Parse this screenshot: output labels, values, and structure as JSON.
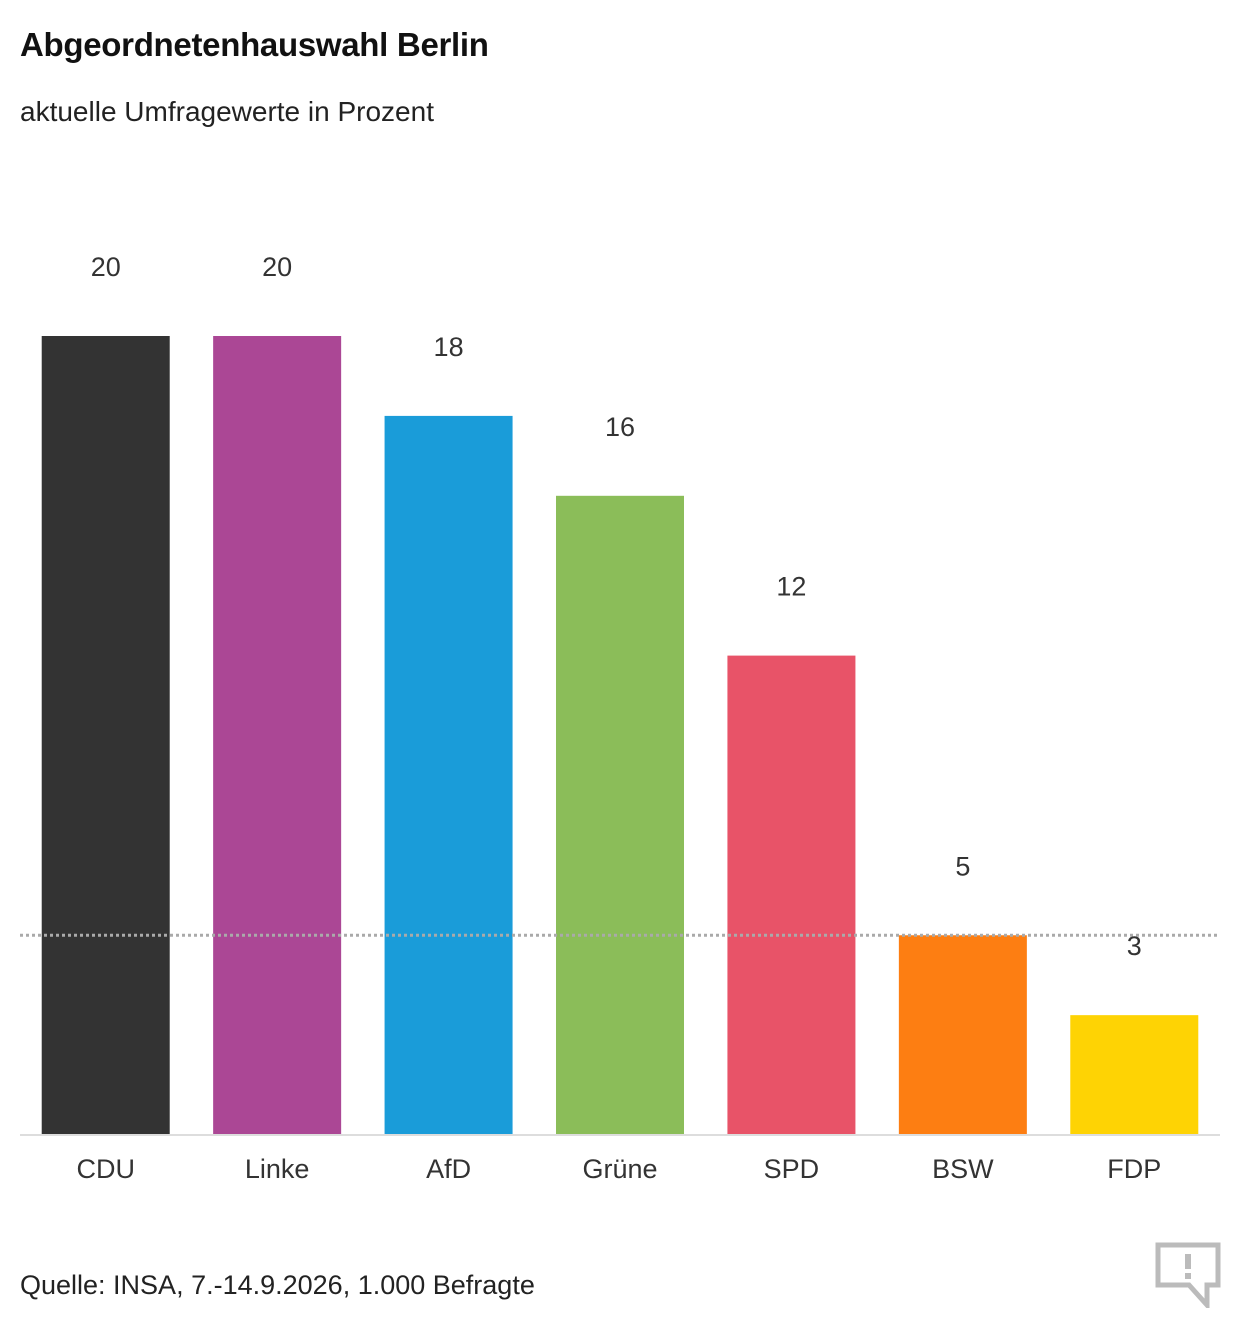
{
  "title": "Abgeordnetenhauswahl Berlin",
  "subtitle": "aktuelle Umfragewerte in Prozent",
  "source": "Quelle: INSA, 7.-14.9.2026, 1.000 Befragte",
  "chart_data": {
    "type": "bar",
    "categories": [
      "CDU",
      "Linke",
      "AfD",
      "Grüne",
      "SPD",
      "BSW",
      "FDP"
    ],
    "values": [
      20,
      20,
      18,
      16,
      12,
      5,
      3
    ],
    "colors": [
      "#333333",
      "#ab4795",
      "#1a9cd9",
      "#8bbd59",
      "#e85368",
      "#fd7e12",
      "#fed304"
    ],
    "ylim": [
      0,
      20
    ],
    "threshold": 5,
    "grid": false,
    "legend": "none"
  }
}
